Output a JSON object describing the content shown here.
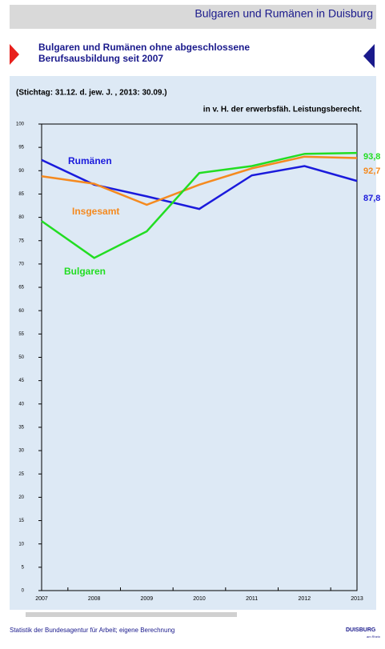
{
  "header": {
    "title": "Bulgaren und Rumänen in Duisburg",
    "subtitle_line1": "Bulgaren und Rumänen ohne abgeschlossene",
    "subtitle_line2": "Berufsausbildung seit 2007"
  },
  "chart_data": {
    "type": "line",
    "note": "(Stichtag:  31.12. d. jew. J. , 2013: 30.09.)",
    "y_label": "in v. H.  der erwerbsfäh. Leistungsberecht.",
    "categories": [
      "2007",
      "2008",
      "2009",
      "2010",
      "2011",
      "2012",
      "2013"
    ],
    "series": [
      {
        "name": "Rumänen",
        "color": "#1a1adc",
        "values": [
          92.3,
          87.0,
          84.5,
          81.8,
          89.0,
          91.0,
          87.8
        ],
        "value_labels": [
          null,
          null,
          null,
          null,
          null,
          null,
          "87,8"
        ]
      },
      {
        "name": "Insgesamt",
        "color": "#f58a1f",
        "values": [
          88.8,
          87.2,
          82.7,
          87.0,
          90.5,
          93.0,
          92.7
        ],
        "value_labels": [
          null,
          null,
          null,
          null,
          null,
          null,
          "92,7"
        ]
      },
      {
        "name": "Bulgaren",
        "color": "#22dd22",
        "values": [
          79.2,
          71.3,
          77.0,
          89.5,
          91.0,
          93.6,
          93.8
        ],
        "value_labels": [
          null,
          null,
          null,
          null,
          null,
          null,
          "93,8"
        ]
      }
    ],
    "ylim": [
      0,
      100
    ],
    "yticks": [
      0,
      5,
      10,
      15,
      20,
      25,
      30,
      35,
      40,
      45,
      50,
      55,
      60,
      65,
      70,
      75,
      80,
      85,
      90,
      95,
      100
    ]
  },
  "footer": {
    "source": "Statistik der Bundesagentur für Arbeit; eigene Berechnung",
    "logo": "DUISBURG",
    "logo_sub": "am Rhein"
  }
}
